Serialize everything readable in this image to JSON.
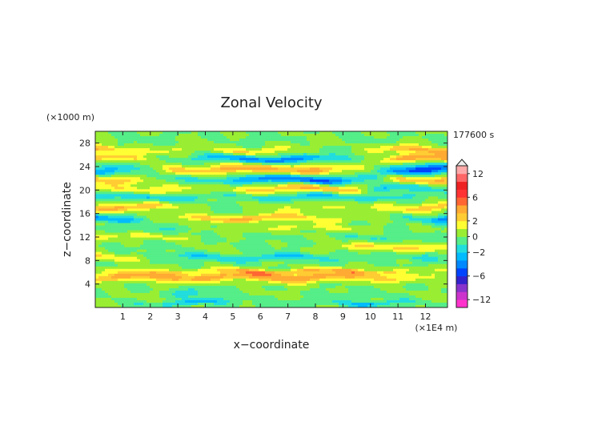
{
  "chart_data": {
    "type": "heatmap",
    "title": "Zonal Velocity",
    "xlabel": "x−coordinate",
    "ylabel": "z−coordinate",
    "x_unit": "(×1E4 m)",
    "y_unit": "(×1000 m)",
    "time_label": "177600 s",
    "xlim": [
      0,
      12.8
    ],
    "ylim": [
      0,
      30
    ],
    "x_ticks": [
      1,
      2,
      3,
      4,
      5,
      6,
      7,
      8,
      9,
      10,
      11,
      12
    ],
    "y_ticks": [
      4,
      8,
      12,
      16,
      20,
      24,
      28
    ],
    "colorbar": {
      "levels": [
        -14,
        -12,
        -10,
        -8,
        -6,
        -4,
        -3,
        -2,
        -1,
        0,
        1,
        2,
        3,
        4,
        6,
        8,
        10,
        12,
        14
      ],
      "labels": [
        {
          "value": 12,
          "text": "12"
        },
        {
          "value": 6,
          "text": "6"
        },
        {
          "value": 2,
          "text": "2"
        },
        {
          "value": 0,
          "text": "0"
        },
        {
          "value": -2,
          "text": "−2"
        },
        {
          "value": -6,
          "text": "−6"
        },
        {
          "value": -12,
          "text": "−12"
        }
      ],
      "colors": [
        "#ff33cc",
        "#cc33cc",
        "#8833cc",
        "#3322cc",
        "#0044ff",
        "#0088ff",
        "#00bbff",
        "#22dddd",
        "#55ee88",
        "#99ee33",
        "#ffff33",
        "#ffcc33",
        "#ffaa33",
        "#ff6633",
        "#ff3333",
        "#ee2222",
        "#ff6666",
        "#ffaaaa"
      ]
    },
    "bands": [
      {
        "z": 0.8,
        "hw": 0.5,
        "a": [
          [
            0,
            0.5
          ],
          [
            1.2,
            -0.5
          ],
          [
            2.2,
            -1.2
          ],
          [
            4,
            -2.5
          ],
          [
            5.5,
            -0.3
          ],
          [
            8.5,
            -0.8
          ],
          [
            10,
            -2.5
          ],
          [
            11.2,
            -1
          ],
          [
            12.8,
            0
          ]
        ]
      },
      {
        "z": 2.2,
        "hw": 0.8,
        "a": [
          [
            0,
            -0.3
          ],
          [
            2,
            0.4
          ],
          [
            3.5,
            -1.8
          ],
          [
            4.5,
            -0.5
          ],
          [
            7,
            0.3
          ],
          [
            9,
            -0.7
          ],
          [
            12.8,
            0.5
          ]
        ]
      },
      {
        "z": 5.2,
        "hw": 0.8,
        "a": [
          [
            0,
            2.6
          ],
          [
            2,
            3.8
          ],
          [
            4,
            3.2
          ],
          [
            6,
            3.6
          ],
          [
            8,
            3.8
          ],
          [
            10,
            2.8
          ],
          [
            11.5,
            1.5
          ],
          [
            12.8,
            0.8
          ]
        ]
      },
      {
        "z": 6.2,
        "hw": 0.4,
        "a": [
          [
            0,
            0.8
          ],
          [
            3,
            1.2
          ],
          [
            6,
            2.2
          ],
          [
            7.5,
            2.6
          ],
          [
            9,
            2.6
          ],
          [
            11,
            1.2
          ],
          [
            12.8,
            0.5
          ]
        ]
      },
      {
        "z": 8.5,
        "hw": 0.6,
        "a": [
          [
            0,
            2.2
          ],
          [
            1.5,
            1
          ],
          [
            3.5,
            -2.2
          ],
          [
            5.5,
            -1.5
          ],
          [
            7,
            -2.5
          ],
          [
            8.5,
            -1.2
          ],
          [
            10,
            -0.5
          ],
          [
            12,
            -1.5
          ],
          [
            12.8,
            -0.5
          ]
        ]
      },
      {
        "z": 10.2,
        "hw": 0.6,
        "a": [
          [
            0,
            0.5
          ],
          [
            2,
            -0.8
          ],
          [
            4,
            0.5
          ],
          [
            6,
            -0.6
          ],
          [
            8,
            0.3
          ],
          [
            9.5,
            1.8
          ],
          [
            11,
            2.4
          ],
          [
            12.8,
            1.8
          ]
        ]
      },
      {
        "z": 12.0,
        "hw": 0.5,
        "a": [
          [
            0,
            1.2
          ],
          [
            2,
            1.6
          ],
          [
            4,
            0.2
          ],
          [
            6,
            -0.5
          ],
          [
            8,
            0.2
          ],
          [
            10,
            -1.2
          ],
          [
            12.8,
            -0.3
          ]
        ]
      },
      {
        "z": 13.5,
        "hw": 0.5,
        "a": [
          [
            0,
            0
          ],
          [
            2,
            -1.2
          ],
          [
            3.5,
            -0.3
          ],
          [
            5,
            0.5
          ],
          [
            7,
            1.2
          ],
          [
            9,
            1.4
          ],
          [
            11,
            -0.3
          ],
          [
            12.8,
            0.3
          ]
        ]
      },
      {
        "z": 15.2,
        "hw": 0.6,
        "a": [
          [
            0,
            -3.5
          ],
          [
            1,
            -2.5
          ],
          [
            2,
            -0.3
          ],
          [
            4,
            2.8
          ],
          [
            6,
            3.2
          ],
          [
            8,
            1.8
          ],
          [
            10,
            0.5
          ],
          [
            12,
            -1.5
          ],
          [
            12.8,
            -4
          ]
        ]
      },
      {
        "z": 17.0,
        "hw": 0.7,
        "a": [
          [
            0,
            3.2
          ],
          [
            2,
            2.6
          ],
          [
            3.5,
            0.3
          ],
          [
            5,
            -0.5
          ],
          [
            7,
            1.2
          ],
          [
            9,
            0.8
          ],
          [
            11,
            2
          ],
          [
            12.8,
            2.6
          ]
        ]
      },
      {
        "z": 18.8,
        "hw": 0.6,
        "a": [
          [
            0,
            -1.2
          ],
          [
            2,
            -2.5
          ],
          [
            4,
            -0.8
          ],
          [
            6,
            -1.2
          ],
          [
            8,
            -2.5
          ],
          [
            10,
            -1.5
          ],
          [
            12.8,
            -0.5
          ]
        ]
      },
      {
        "z": 20.2,
        "hw": 0.7,
        "a": [
          [
            0,
            1.2
          ],
          [
            2,
            2.2
          ],
          [
            4,
            0.8
          ],
          [
            6,
            2.2
          ],
          [
            8,
            3.4
          ],
          [
            9.5,
            2.4
          ],
          [
            10.5,
            -2.5
          ],
          [
            12,
            -1.5
          ],
          [
            12.8,
            -0.8
          ]
        ]
      },
      {
        "z": 21.8,
        "hw": 0.7,
        "a": [
          [
            0,
            3.2
          ],
          [
            1.5,
            1.5
          ],
          [
            3,
            -1.2
          ],
          [
            5,
            -1.8
          ],
          [
            6.5,
            -4
          ],
          [
            8,
            -4.5
          ],
          [
            10,
            -1.5
          ],
          [
            11,
            2.8
          ],
          [
            12.8,
            2.6
          ]
        ]
      },
      {
        "z": 23.5,
        "hw": 0.8,
        "a": [
          [
            0,
            -3
          ],
          [
            1.5,
            -1.2
          ],
          [
            3,
            2.2
          ],
          [
            5,
            3.2
          ],
          [
            6.5,
            3.6
          ],
          [
            8,
            3.2
          ],
          [
            10,
            0.5
          ],
          [
            11,
            -4.2
          ],
          [
            12.8,
            -4.5
          ]
        ]
      },
      {
        "z": 25.3,
        "hw": 0.6,
        "a": [
          [
            0,
            2.5
          ],
          [
            1.5,
            1.8
          ],
          [
            3.5,
            -1.2
          ],
          [
            5.5,
            -3.5
          ],
          [
            6.5,
            -4
          ],
          [
            8,
            -2.5
          ],
          [
            9.5,
            -1
          ],
          [
            11,
            3.4
          ],
          [
            12.8,
            3.8
          ]
        ]
      },
      {
        "z": 26.8,
        "hw": 0.6,
        "a": [
          [
            0,
            3.2
          ],
          [
            2,
            1.2
          ],
          [
            4,
            0.8
          ],
          [
            5.5,
            2.2
          ],
          [
            7,
            1
          ],
          [
            8.5,
            -0.5
          ],
          [
            10,
            0.8
          ],
          [
            11,
            3.2
          ],
          [
            12.8,
            3.4
          ]
        ]
      },
      {
        "z": 28.5,
        "hw": 0.7,
        "a": [
          [
            0,
            0.3
          ],
          [
            2,
            -0.5
          ],
          [
            4,
            0.4
          ],
          [
            6,
            -0.6
          ],
          [
            8,
            0.5
          ],
          [
            10,
            -0.3
          ],
          [
            12.8,
            0.3
          ]
        ]
      }
    ]
  }
}
